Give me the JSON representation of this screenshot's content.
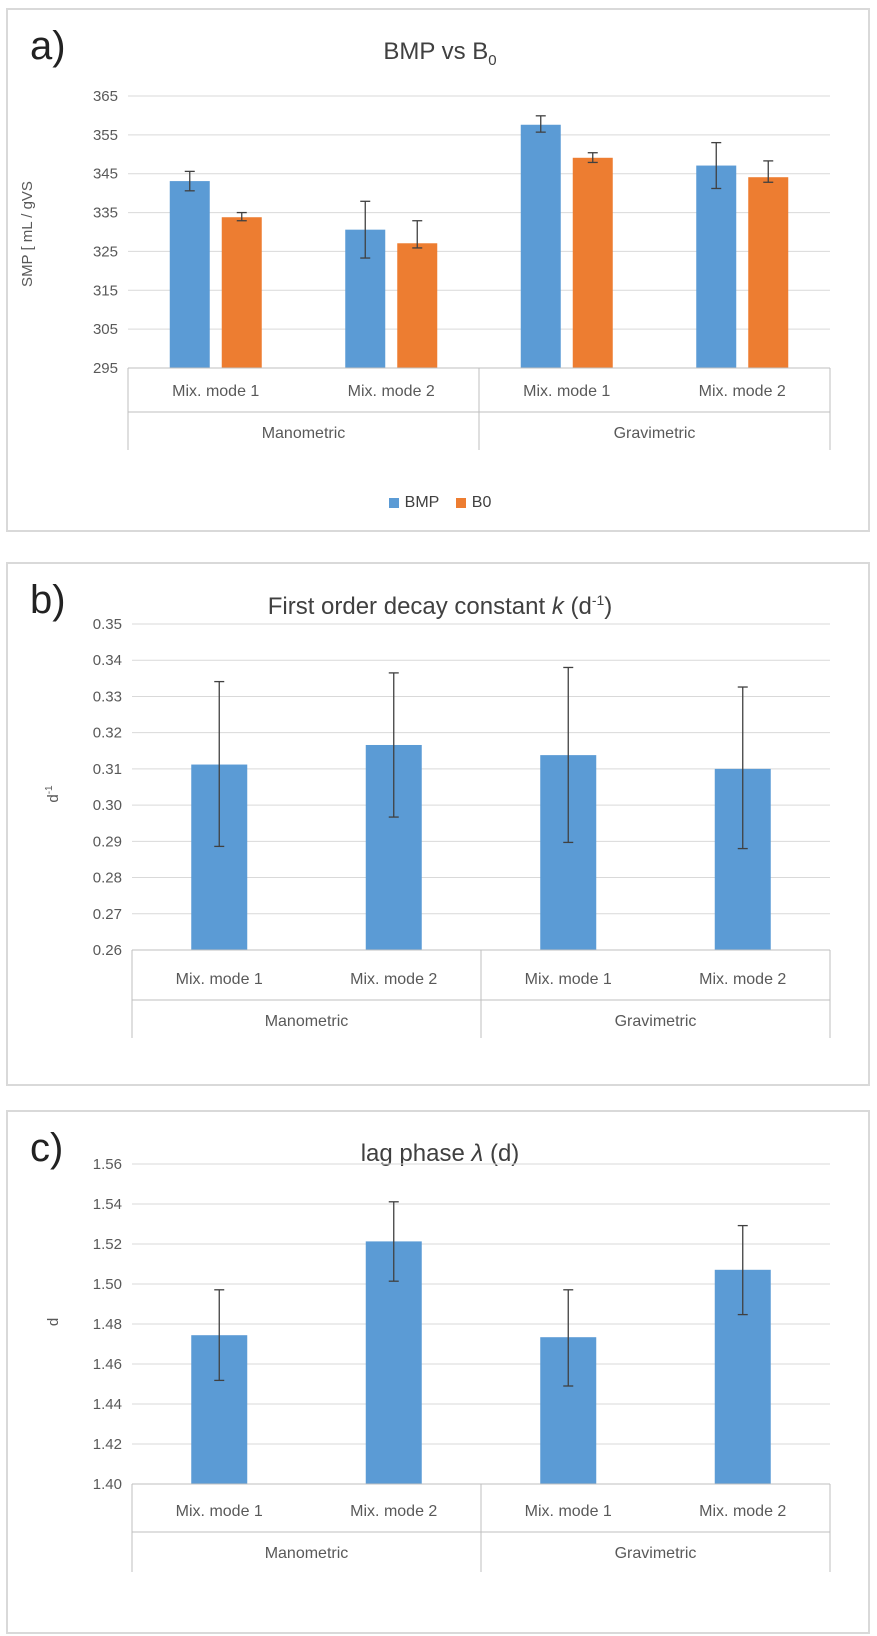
{
  "chart_data": [
    {
      "panel_label": "a)",
      "type": "bar",
      "title": "BMP vs B",
      "title_subscript": "0",
      "ylabel": "SMP [ mL / gVS",
      "ylim": [
        295,
        365
      ],
      "yticks": [
        "295",
        "305",
        "315",
        "325",
        "335",
        "345",
        "355",
        "365"
      ],
      "groups": [
        "Manometric",
        "Gravimetric"
      ],
      "categories": [
        "Mix. mode 1",
        "Mix. mode 2",
        "Mix. mode 1",
        "Mix. mode 2"
      ],
      "category_group": [
        0,
        0,
        1,
        1
      ],
      "series": [
        {
          "name": "BMP",
          "color": "#5b9bd5",
          "values": [
            343.1,
            330.6,
            357.6,
            347.1
          ],
          "err_low": [
            340.6,
            323.3,
            355.7,
            341.2
          ],
          "err_high": [
            345.6,
            337.9,
            359.9,
            353.0
          ]
        },
        {
          "name": "B0",
          "color": "#ed7d31",
          "values": [
            333.8,
            327.1,
            349.1,
            344.1
          ],
          "err_low": [
            332.9,
            325.9,
            347.9,
            342.8
          ],
          "err_high": [
            335.0,
            332.9,
            350.4,
            348.3
          ]
        }
      ],
      "legend_position": "bottom",
      "grid": true
    },
    {
      "panel_label": "b)",
      "type": "bar",
      "title": "First order decay constant",
      "title_var": "k",
      "title_unit": "(d",
      "title_sup": "-1",
      "title_close": ")",
      "ylabel": "d",
      "ylabel_sup": "-1",
      "ylim": [
        0.26,
        0.35
      ],
      "yticks": [
        "0.26",
        "0.27",
        "0.28",
        "0.29",
        "0.30",
        "0.31",
        "0.32",
        "0.33",
        "0.34",
        "0.35"
      ],
      "groups": [
        "Manometric",
        "Gravimetric"
      ],
      "categories": [
        "Mix. mode 1",
        "Mix. mode 2",
        "Mix. mode 1",
        "Mix. mode 2"
      ],
      "category_group": [
        0,
        0,
        1,
        1
      ],
      "series": [
        {
          "color": "#5b9bd5",
          "values": [
            0.3112,
            0.3166,
            0.3138,
            0.31
          ],
          "err_low": [
            0.2886,
            0.2967,
            0.2897,
            0.288
          ],
          "err_high": [
            0.3341,
            0.3365,
            0.338,
            0.3326
          ]
        }
      ],
      "grid": true
    },
    {
      "panel_label": "c)",
      "type": "bar",
      "title": "lag phase",
      "title_var": "λ",
      "title_unit": "(d)",
      "ylabel": "d",
      "ylim": [
        1.4,
        1.56
      ],
      "yticks": [
        "1.40",
        "1.42",
        "1.44",
        "1.46",
        "1.48",
        "1.50",
        "1.52",
        "1.54",
        "1.56"
      ],
      "groups": [
        "Manometric",
        "Gravimetric"
      ],
      "categories": [
        "Mix. mode 1",
        "Mix. mode 2",
        "Mix. mode 1",
        "Mix. mode 2"
      ],
      "category_group": [
        0,
        0,
        1,
        1
      ],
      "series": [
        {
          "color": "#5b9bd5",
          "values": [
            1.4744,
            1.5213,
            1.4734,
            1.5071
          ],
          "err_low": [
            1.4518,
            1.5014,
            1.449,
            1.4847
          ],
          "err_high": [
            1.4971,
            1.5411,
            1.4971,
            1.5292
          ]
        }
      ],
      "grid": true
    }
  ]
}
